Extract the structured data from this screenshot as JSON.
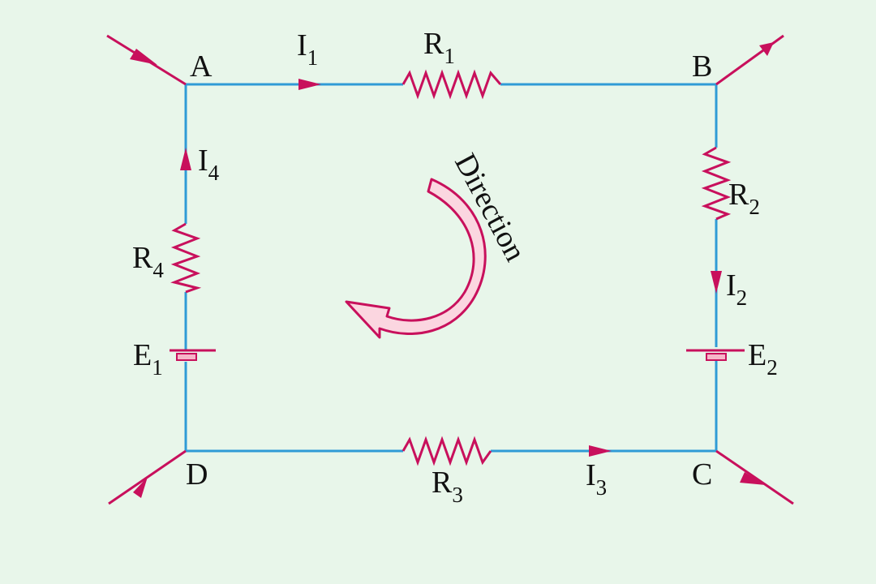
{
  "colors": {
    "background": "#e8f6ea",
    "wire": "#2f9bd6",
    "component": "#c8105c",
    "direction_arrow_fill": "#fbd6e0",
    "text": "#111111"
  },
  "nodes": {
    "a": "A",
    "b": "B",
    "c": "C",
    "d": "D"
  },
  "currents": [
    {
      "letter": "I",
      "sub": "1"
    },
    {
      "letter": "I",
      "sub": "2"
    },
    {
      "letter": "I",
      "sub": "3"
    },
    {
      "letter": "I",
      "sub": "4"
    }
  ],
  "resistors": [
    {
      "letter": "R",
      "sub": "1"
    },
    {
      "letter": "R",
      "sub": "2"
    },
    {
      "letter": "R",
      "sub": "3"
    },
    {
      "letter": "R",
      "sub": "4"
    }
  ],
  "sources": [
    {
      "letter": "E",
      "sub": "1"
    },
    {
      "letter": "E",
      "sub": "2"
    }
  ],
  "direction_label": "Direction"
}
